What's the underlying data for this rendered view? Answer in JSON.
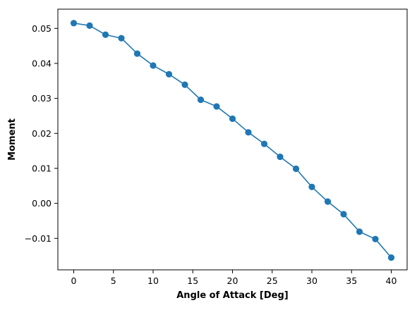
{
  "chart_data": {
    "type": "line",
    "title": "",
    "xlabel": "Angle of Attack [Deg]",
    "ylabel": "Moment",
    "xlim": [
      -2,
      42
    ],
    "ylim": [
      -0.019,
      0.0555
    ],
    "xticks": [
      0,
      5,
      10,
      15,
      20,
      25,
      30,
      35,
      40
    ],
    "xtick_labels": [
      "0",
      "5",
      "10",
      "15",
      "20",
      "25",
      "30",
      "35",
      "40"
    ],
    "yticks": [
      -0.01,
      0.0,
      0.01,
      0.02,
      0.03,
      0.04,
      0.05
    ],
    "ytick_labels": [
      "−0.01",
      "0.00",
      "0.01",
      "0.02",
      "0.03",
      "0.04",
      "0.05"
    ],
    "grid": false,
    "legend": "none",
    "series": [
      {
        "color": "#1f77b4",
        "marker": "circle",
        "x": [
          0,
          2,
          4,
          6,
          8,
          10,
          12,
          14,
          16,
          18,
          20,
          22,
          24,
          26,
          28,
          30,
          32,
          34,
          36,
          38,
          40
        ],
        "y": [
          0.0515,
          0.0508,
          0.0482,
          0.0472,
          0.0428,
          0.0394,
          0.0369,
          0.0339,
          0.0296,
          0.0277,
          0.0242,
          0.0203,
          0.017,
          0.0133,
          0.0099,
          0.0047,
          0.0005,
          -0.0031,
          -0.0081,
          -0.0102,
          -0.0155
        ]
      }
    ]
  }
}
